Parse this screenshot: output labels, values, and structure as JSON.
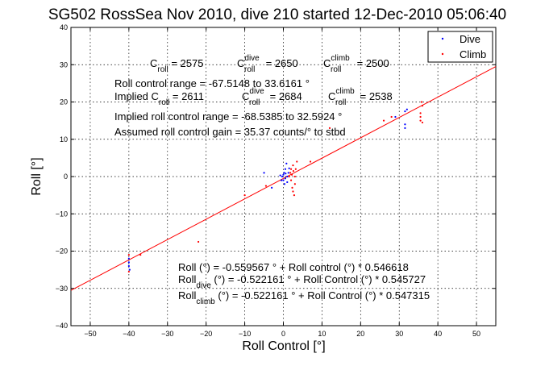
{
  "chart_data": {
    "type": "scatter",
    "title": "SG502 RossSea Nov 2010, dive 210 started 12-Dec-2010 05:06:40",
    "xlabel": "Roll Control [°]",
    "ylabel": "Roll [°]",
    "xlim": [
      -55,
      55
    ],
    "ylim": [
      -40,
      40
    ],
    "x_ticks": [
      -50,
      -40,
      -30,
      -20,
      -10,
      0,
      10,
      20,
      30,
      40,
      50
    ],
    "y_ticks": [
      -40,
      -30,
      -20,
      -10,
      0,
      10,
      20,
      30,
      40
    ],
    "grid": true,
    "legend_placement": "top-right",
    "legend": [
      {
        "label": "Dive",
        "color": "#0000ff"
      },
      {
        "label": "Climb",
        "color": "#ff0000"
      }
    ],
    "fit_line": {
      "intercept": -0.522161,
      "slope": 0.545727,
      "color": "#ff0000",
      "x_range": [
        -55,
        55
      ]
    },
    "series": [
      {
        "name": "Dive",
        "color": "#0000ff",
        "points": [
          [
            -40,
            -22
          ],
          [
            -40,
            -23
          ],
          [
            -40,
            -24
          ],
          [
            -39.8,
            -25
          ],
          [
            -5,
            1
          ],
          [
            -3,
            -3
          ],
          [
            -0.5,
            -1
          ],
          [
            -0.3,
            0
          ],
          [
            0,
            0.5
          ],
          [
            0,
            -1
          ],
          [
            0.2,
            1
          ],
          [
            0.3,
            -2
          ],
          [
            0.5,
            2
          ],
          [
            0.5,
            -0.5
          ],
          [
            0.8,
            3.5
          ],
          [
            1,
            -1.5
          ],
          [
            1,
            0
          ],
          [
            1.3,
            1
          ],
          [
            1.5,
            2.2
          ],
          [
            -0.8,
            0.3
          ],
          [
            0.6,
            0.8
          ],
          [
            29,
            16
          ],
          [
            31.5,
            13
          ],
          [
            31.5,
            14
          ],
          [
            31.5,
            17.5
          ],
          [
            32,
            18
          ]
        ]
      },
      {
        "name": "Climb",
        "color": "#ff0000",
        "points": [
          [
            -40,
            -21
          ],
          [
            -40,
            -25.5
          ],
          [
            -37,
            -21
          ],
          [
            -22,
            -17.5
          ],
          [
            -10,
            -5
          ],
          [
            -4.5,
            -2.5
          ],
          [
            1.5,
            0
          ],
          [
            1.8,
            1
          ],
          [
            2,
            2
          ],
          [
            2,
            -1
          ],
          [
            2.2,
            0.5
          ],
          [
            2.3,
            -3
          ],
          [
            2.5,
            -4
          ],
          [
            2.5,
            3
          ],
          [
            2.8,
            -5
          ],
          [
            2.6,
            1.5
          ],
          [
            3,
            0
          ],
          [
            3,
            -2
          ],
          [
            3.2,
            2
          ],
          [
            3.5,
            4
          ],
          [
            7,
            4
          ],
          [
            12,
            13
          ],
          [
            26,
            15
          ],
          [
            28,
            16
          ],
          [
            35.5,
            15
          ],
          [
            35.5,
            16
          ],
          [
            35.5,
            17
          ],
          [
            35.8,
            20
          ],
          [
            36,
            14.5
          ],
          [
            36,
            19
          ]
        ]
      }
    ]
  },
  "annotations": {
    "c_roll": "C",
    "c_roll_sub": "roll",
    "c_roll_val": " = 2575",
    "c_roll_dive": "C",
    "c_roll_dive_sup": "dive",
    "c_roll_dive_sub": "roll",
    "c_roll_dive_val": " = 2650",
    "c_roll_climb": "C",
    "c_roll_climb_sup": "climb",
    "c_roll_climb_sub": "roll",
    "c_roll_climb_val": " = 2500",
    "roll_control_range": "Roll control range = -67.5148 to 33.6161 °",
    "implied_c": "Implied C",
    "implied_c_sub": "roll",
    "implied_c_val": " = 2611",
    "implied_c_dive": "C",
    "implied_c_dive_sup": "dive",
    "implied_c_dive_sub": "roll",
    "implied_c_dive_val": " = 2684",
    "implied_c_climb": "C",
    "implied_c_climb_sup": "climb",
    "implied_c_climb_sub": "roll",
    "implied_c_climb_val": " = 2538",
    "implied_range": "Implied roll control range = -68.5385 to 32.5924 °",
    "assumed_gain": "Assumed roll control gain = 35.37 counts/° to stbd",
    "fit_all": "Roll (°) = -0.559567 ° + Roll control (°) * 0.546618",
    "fit_dive_pre": "Roll",
    "fit_dive_sub": "dive",
    "fit_dive_post": " (°) = -0.522161 ° + Roll Control (°) * 0.545727",
    "fit_climb_pre": "Roll",
    "fit_climb_sub": "climb",
    "fit_climb_post": " (°) = -0.522161 ° + Roll Control (°) * 0.547315"
  }
}
